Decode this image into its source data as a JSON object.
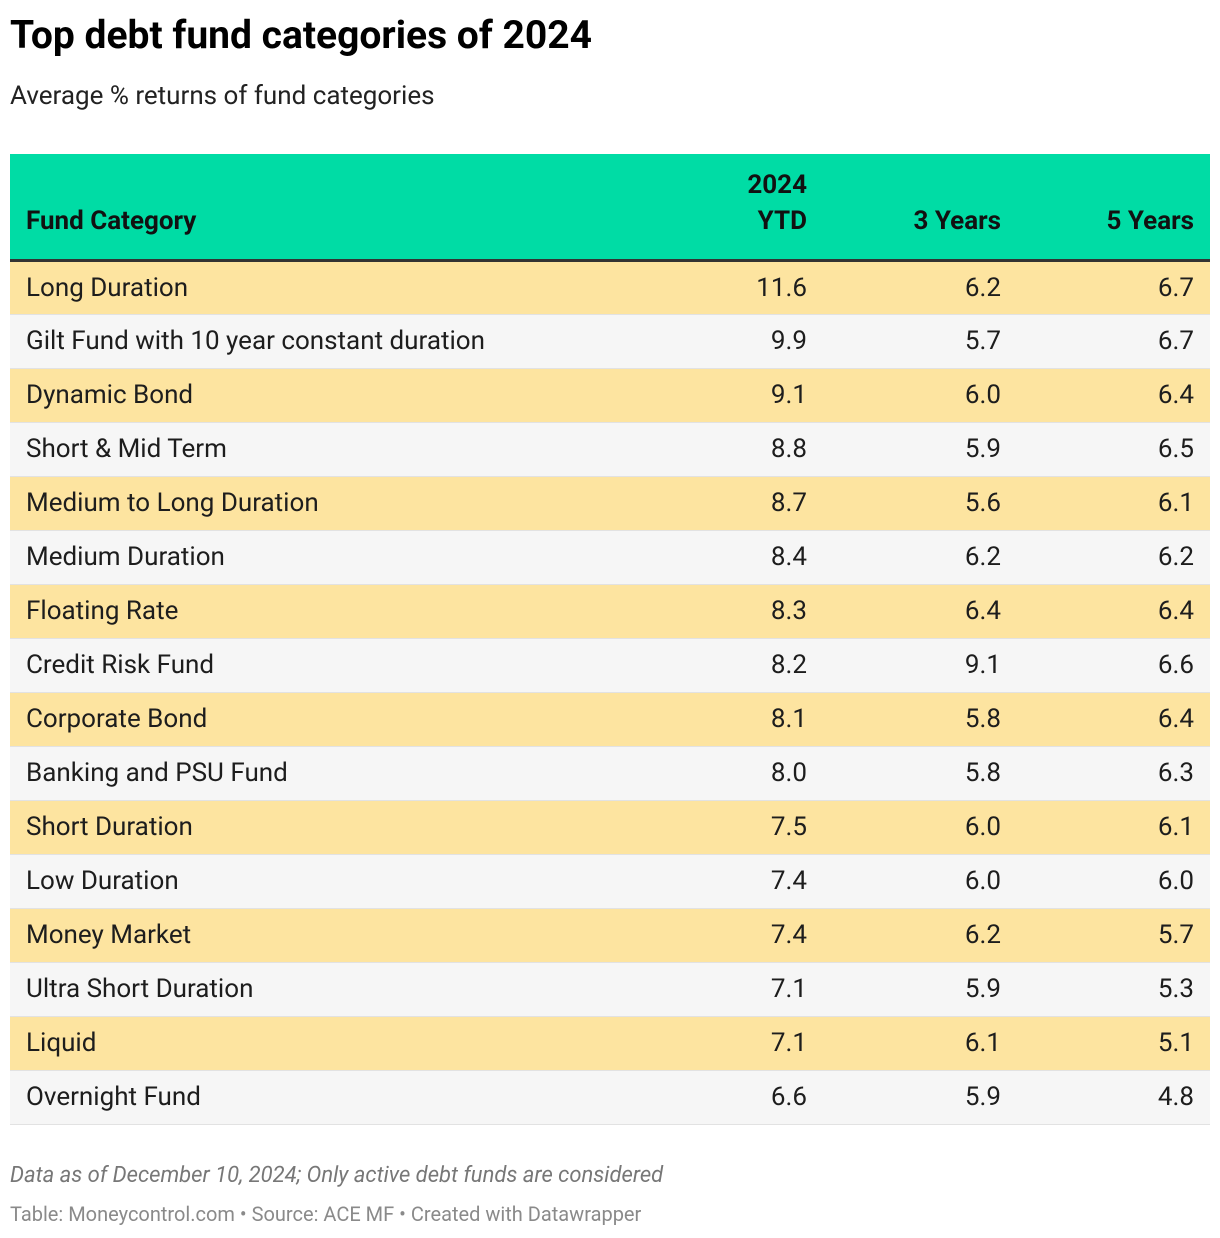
{
  "header": {
    "title": "Top debt fund categories of 2024",
    "subtitle": "Average % returns of fund categories"
  },
  "table": {
    "columns": [
      "Fund Category",
      "2024 YTD",
      "3 Years",
      "5 Years"
    ],
    "rows": [
      [
        "Long Duration",
        "11.6",
        "6.2",
        "6.7"
      ],
      [
        "Gilt Fund with 10 year constant duration",
        "9.9",
        "5.7",
        "6.7"
      ],
      [
        "Dynamic Bond",
        "9.1",
        "6.0",
        "6.4"
      ],
      [
        "Short & Mid Term",
        "8.8",
        "5.9",
        "6.5"
      ],
      [
        "Medium to Long Duration",
        "8.7",
        "5.6",
        "6.1"
      ],
      [
        "Medium Duration",
        "8.4",
        "6.2",
        "6.2"
      ],
      [
        "Floating Rate",
        "8.3",
        "6.4",
        "6.4"
      ],
      [
        "Credit Risk Fund",
        "8.2",
        "9.1",
        "6.6"
      ],
      [
        "Corporate Bond",
        "8.1",
        "5.8",
        "6.4"
      ],
      [
        "Banking and PSU Fund",
        "8.0",
        "5.8",
        "6.3"
      ],
      [
        "Short Duration",
        "7.5",
        "6.0",
        "6.1"
      ],
      [
        "Low Duration",
        "7.4",
        "6.0",
        "6.0"
      ],
      [
        "Money Market",
        "7.4",
        "6.2",
        "5.7"
      ],
      [
        "Ultra Short Duration",
        "7.1",
        "5.9",
        "5.3"
      ],
      [
        "Liquid",
        "7.1",
        "6.1",
        "5.1"
      ],
      [
        "Overnight Fund",
        "6.6",
        "5.9",
        "4.8"
      ]
    ]
  },
  "footer": {
    "note": "Data as of December 10, 2024; Only active debt funds are considered",
    "source": "Table: Moneycontrol.com • Source: ACE MF • Created with Datawrapper"
  }
}
